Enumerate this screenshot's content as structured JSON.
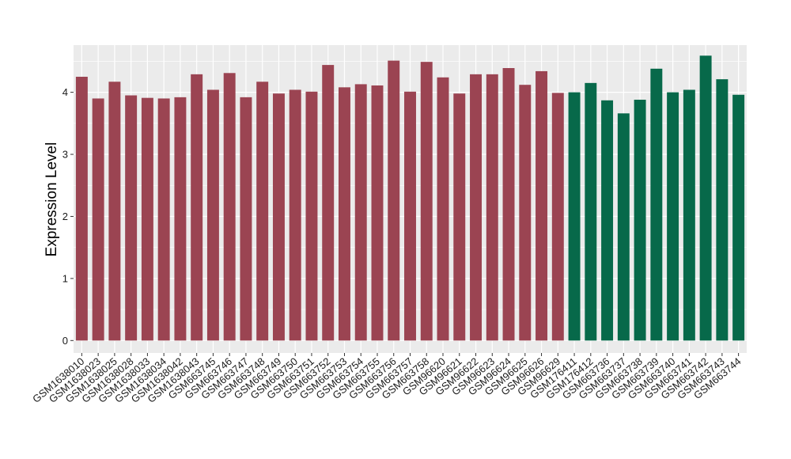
{
  "chart_data": {
    "type": "bar",
    "title": "",
    "xlabel": "",
    "ylabel": "Expression Level",
    "ylim": [
      -0.2,
      4.76
    ],
    "yticks": [
      0,
      1,
      2,
      3,
      4
    ],
    "grid": true,
    "legend": "none",
    "categories": [
      "GSM1638010",
      "GSM1638023",
      "GSM1638025",
      "GSM1638028",
      "GSM1638033",
      "GSM1638034",
      "GSM1638042",
      "GSM1638043",
      "GSM663745",
      "GSM663746",
      "GSM663747",
      "GSM663748",
      "GSM663749",
      "GSM663750",
      "GSM663751",
      "GSM663752",
      "GSM663753",
      "GSM663754",
      "GSM663755",
      "GSM663756",
      "GSM663757",
      "GSM663758",
      "GSM96620",
      "GSM96621",
      "GSM96622",
      "GSM96623",
      "GSM96624",
      "GSM96625",
      "GSM96626",
      "GSM96629",
      "GSM176411",
      "GSM176412",
      "GSM663736",
      "GSM663737",
      "GSM663738",
      "GSM663739",
      "GSM663740",
      "GSM663741",
      "GSM663742",
      "GSM663743",
      "GSM663744"
    ],
    "values": [
      4.25,
      3.9,
      4.17,
      3.95,
      3.91,
      3.9,
      3.92,
      4.29,
      4.04,
      4.31,
      3.92,
      4.17,
      3.98,
      4.04,
      4.01,
      4.44,
      4.08,
      4.13,
      4.11,
      4.51,
      4.01,
      4.49,
      4.24,
      3.98,
      4.29,
      4.29,
      4.39,
      4.12,
      4.34,
      3.99,
      4.0,
      4.15,
      3.87,
      3.66,
      3.88,
      4.38,
      4.0,
      4.04,
      4.59,
      4.21,
      3.96
    ],
    "groups": [
      "a",
      "a",
      "a",
      "a",
      "a",
      "a",
      "a",
      "a",
      "a",
      "a",
      "a",
      "a",
      "a",
      "a",
      "a",
      "a",
      "a",
      "a",
      "a",
      "a",
      "a",
      "a",
      "a",
      "a",
      "a",
      "a",
      "a",
      "a",
      "a",
      "a",
      "b",
      "b",
      "b",
      "b",
      "b",
      "b",
      "b",
      "b",
      "b",
      "b",
      "b"
    ],
    "colors": {
      "a": "#9b4452",
      "b": "#07694a",
      "panel": "#ebebeb",
      "grid": "#ffffff"
    }
  }
}
